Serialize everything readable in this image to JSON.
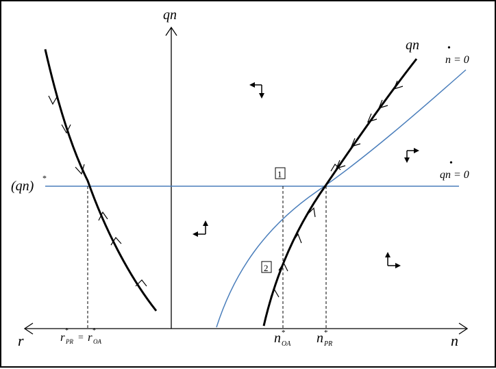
{
  "axes": {
    "vertical_label": "qn",
    "left_label": "r",
    "right_label": "n"
  },
  "curves": {
    "saddle_path_label": "qn",
    "n_nullcline_label": "n = 0",
    "n_nullcline_dot": "•",
    "qn_nullcline_label": "qn = 0",
    "qn_nullcline_dot": "•"
  },
  "steady_state": {
    "qn_star_base": "(qn)",
    "qn_star_sup": "*"
  },
  "ticks": {
    "r_pr_base": "r",
    "r_pr_sub": "PR",
    "eq": "=",
    "r_oa_base": "r",
    "r_oa_sub": "OA",
    "star": "*",
    "n_oa_base": "n",
    "n_oa_sub": "OA",
    "n_pr_base": "n",
    "n_pr_sub": "PR"
  },
  "markers": {
    "point1": "1",
    "point2": "2"
  },
  "colors": {
    "nullcline": "#4a7ebb",
    "path": "#000000"
  }
}
